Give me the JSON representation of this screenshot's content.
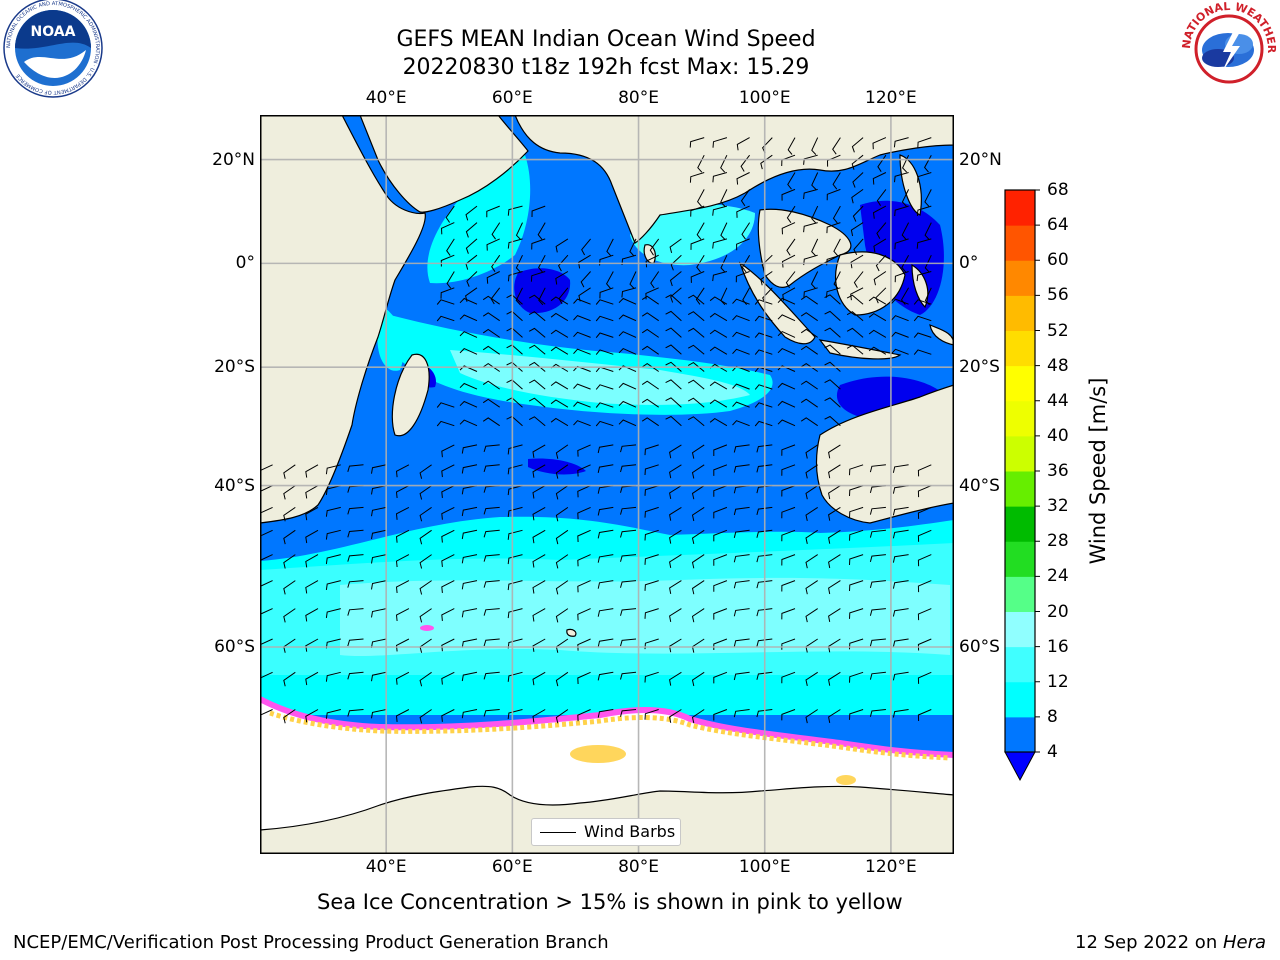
{
  "header": {
    "title_line1": "GEFS MEAN Indian Ocean Wind Speed",
    "title_line2": "20220830 t18z 192h fcst   Max: 15.29"
  },
  "logos": {
    "left_text": "NOAA",
    "left_ring_text": "NATIONAL OCEANIC AND ATMOSPHERIC ADMINISTRATION · U.S. DEPARTMENT OF COMMERCE",
    "right_ring_text": "NATIONAL WEATHER SERVICE"
  },
  "map": {
    "lon_labels": [
      "40°E",
      "60°E",
      "80°E",
      "100°E",
      "120°E"
    ],
    "lat_labels_left": [
      "20°N",
      "0°",
      "20°S",
      "40°S",
      "60°S"
    ],
    "lat_labels_right": [
      "20°N",
      "0°",
      "20°S",
      "40°S",
      "60°S"
    ],
    "lon_range": [
      20,
      130
    ],
    "lat_range": [
      -75,
      28
    ],
    "legend_label": "Wind Barbs",
    "colors": {
      "land": "#efeedd",
      "ocean_low": "#0077ff",
      "ocean_med": "#00ffff",
      "ocean_high": "#80ffff",
      "calm": "#0000ee",
      "sea_ice_pink": "#ff55ee",
      "sea_ice_yellow": "#ffd24a",
      "ice_shelf": "#ffffff"
    }
  },
  "colorbar": {
    "label": "Wind Speed [m/s]",
    "ticks": [
      "4",
      "8",
      "12",
      "16",
      "20",
      "24",
      "28",
      "32",
      "36",
      "40",
      "44",
      "48",
      "52",
      "56",
      "60",
      "64",
      "68"
    ],
    "colors": [
      "#0077ff",
      "#00ffff",
      "#40ffff",
      "#90ffff",
      "#55ff88",
      "#22dd22",
      "#00bb00",
      "#66ee00",
      "#ccff00",
      "#eeff00",
      "#ffff00",
      "#ffdd00",
      "#ffbb00",
      "#ff8800",
      "#ff5500",
      "#ff2200"
    ],
    "extend_color": "#0000ff"
  },
  "caption": "Sea Ice Concentration > 15% is shown in pink to yellow",
  "footer": {
    "left": "NCEP/EMC/Verification Post Processing Product Generation Branch",
    "right_prefix": "12 Sep 2022 on ",
    "right_machine": "Hera"
  }
}
